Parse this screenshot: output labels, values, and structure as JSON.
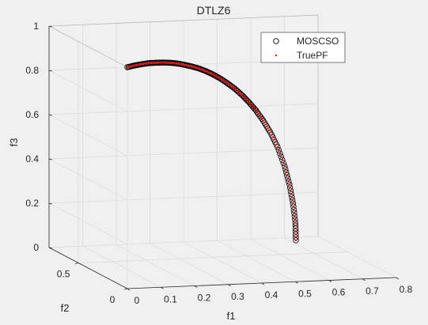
{
  "chart_data": {
    "type": "scatter",
    "title": "DTLZ6",
    "xlabel": "f1",
    "ylabel": "f2",
    "zlabel": "f3",
    "xlim": [
      0,
      0.8
    ],
    "ylim": [
      0,
      0.8
    ],
    "zlim": [
      0,
      1
    ],
    "x_ticks": [
      "0",
      "0.1",
      "0.2",
      "0.3",
      "0.4",
      "0.5",
      "0.6",
      "0.7",
      "0.8"
    ],
    "y_ticks": [
      "0",
      "0.5"
    ],
    "z_ticks": [
      "0",
      "0.2",
      "0.4",
      "0.6",
      "0.8",
      "1"
    ],
    "grid": true,
    "legend_position": "top-right",
    "series": [
      {
        "name": "MOSCSO",
        "marker": "circle",
        "color": "#000000",
        "points": [
          {
            "f1": 0.0,
            "f2": 0.0,
            "f3": 1.0
          },
          {
            "f1": 0.03,
            "f2": 0.03,
            "f3": 0.999
          },
          {
            "f1": 0.06,
            "f2": 0.06,
            "f3": 0.996
          },
          {
            "f1": 0.09,
            "f2": 0.09,
            "f3": 0.992
          },
          {
            "f1": 0.12,
            "f2": 0.12,
            "f3": 0.985
          },
          {
            "f1": 0.15,
            "f2": 0.15,
            "f3": 0.977
          },
          {
            "f1": 0.18,
            "f2": 0.18,
            "f3": 0.967
          },
          {
            "f1": 0.21,
            "f2": 0.21,
            "f3": 0.955
          },
          {
            "f1": 0.24,
            "f2": 0.24,
            "f3": 0.94
          },
          {
            "f1": 0.27,
            "f2": 0.27,
            "f3": 0.924
          },
          {
            "f1": 0.3,
            "f2": 0.3,
            "f3": 0.906
          },
          {
            "f1": 0.33,
            "f2": 0.33,
            "f3": 0.885
          },
          {
            "f1": 0.36,
            "f2": 0.36,
            "f3": 0.861
          },
          {
            "f1": 0.39,
            "f2": 0.39,
            "f3": 0.834
          },
          {
            "f1": 0.42,
            "f2": 0.42,
            "f3": 0.804
          },
          {
            "f1": 0.45,
            "f2": 0.45,
            "f3": 0.771
          },
          {
            "f1": 0.48,
            "f2": 0.48,
            "f3": 0.734
          },
          {
            "f1": 0.51,
            "f2": 0.51,
            "f3": 0.692
          },
          {
            "f1": 0.54,
            "f2": 0.54,
            "f3": 0.645
          },
          {
            "f1": 0.57,
            "f2": 0.57,
            "f3": 0.591
          },
          {
            "f1": 0.6,
            "f2": 0.6,
            "f3": 0.529
          },
          {
            "f1": 0.63,
            "f2": 0.63,
            "f3": 0.454
          },
          {
            "f1": 0.66,
            "f2": 0.66,
            "f3": 0.358
          },
          {
            "f1": 0.68,
            "f2": 0.68,
            "f3": 0.27
          },
          {
            "f1": 0.695,
            "f2": 0.695,
            "f3": 0.18
          },
          {
            "f1": 0.705,
            "f2": 0.705,
            "f3": 0.09
          },
          {
            "f1": 0.707,
            "f2": 0.707,
            "f3": 0.01
          }
        ]
      },
      {
        "name": "TruePF",
        "marker": "dot",
        "color": "#ff0000"
      }
    ]
  }
}
